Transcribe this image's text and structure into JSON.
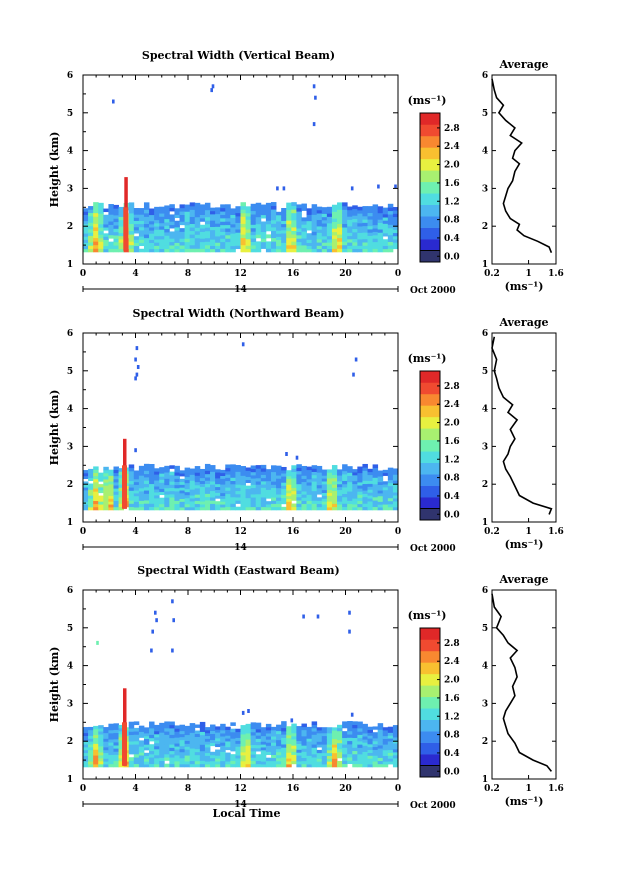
{
  "panels": [
    {
      "title": "Spectral Width (Vertical Beam)",
      "main_chart": {
        "type": "heatmap",
        "xlim": [
          0,
          24
        ],
        "ylim": [
          1,
          6
        ],
        "x_ticks": [
          "0",
          "4",
          "8",
          "12",
          "16",
          "20",
          "0"
        ],
        "y_ticks": [
          "1",
          "2",
          "3",
          "4",
          "5",
          "6"
        ],
        "ylabel": "Height (km)",
        "date_tick": "14",
        "date_label": "Oct 2000",
        "dense_layer_top_km": 2.55,
        "convective_columns_h": [
          1.0,
          3.3,
          12.3,
          15.8,
          19.4
        ],
        "peak_column": {
          "x_h": 3.3,
          "top_km": 3.3
        },
        "sparse_points": [
          [
            2.3,
            5.3
          ],
          [
            9.8,
            5.6
          ],
          [
            9.9,
            5.7
          ],
          [
            17.6,
            5.7
          ],
          [
            17.7,
            5.4
          ],
          [
            17.6,
            4.7
          ],
          [
            14.8,
            3.0
          ],
          [
            15.3,
            3.0
          ],
          [
            20.5,
            3.0
          ],
          [
            22.5,
            3.05
          ],
          [
            23.8,
            3.05
          ]
        ]
      },
      "colorbar": {
        "unit": "(ms⁻¹)",
        "ticks": [
          "0.0",
          "0.4",
          "0.8",
          "1.2",
          "1.6",
          "2.0",
          "2.4",
          "2.8"
        ]
      },
      "average": {
        "title": "Average",
        "xlim": [
          0.2,
          1.6
        ],
        "x_ticks": [
          "0.2",
          "1",
          "1.6"
        ],
        "y_ticks": [
          "1",
          "2",
          "3",
          "4",
          "5",
          "6"
        ],
        "xlabel": "(ms⁻¹)",
        "profile": [
          [
            1.5,
            1.3
          ],
          [
            1.45,
            1.45
          ],
          [
            1.2,
            1.6
          ],
          [
            0.9,
            1.75
          ],
          [
            0.75,
            1.9
          ],
          [
            0.8,
            2.05
          ],
          [
            0.6,
            2.2
          ],
          [
            0.5,
            2.4
          ],
          [
            0.45,
            2.6
          ],
          [
            0.5,
            2.8
          ],
          [
            0.55,
            3.0
          ],
          [
            0.65,
            3.2
          ],
          [
            0.7,
            3.45
          ],
          [
            0.8,
            3.65
          ],
          [
            0.65,
            3.8
          ],
          [
            0.7,
            4.0
          ],
          [
            0.85,
            4.2
          ],
          [
            0.6,
            4.4
          ],
          [
            0.7,
            4.6
          ],
          [
            0.5,
            4.8
          ],
          [
            0.35,
            5.0
          ],
          [
            0.45,
            5.2
          ],
          [
            0.3,
            5.4
          ],
          [
            0.25,
            5.6
          ],
          [
            0.2,
            5.9
          ]
        ]
      }
    },
    {
      "title": "Spectral Width (Northward Beam)",
      "main_chart": {
        "type": "heatmap",
        "xlim": [
          0,
          24
        ],
        "ylim": [
          1,
          6
        ],
        "x_ticks": [
          "0",
          "4",
          "8",
          "12",
          "16",
          "20",
          "0"
        ],
        "y_ticks": [
          "1",
          "2",
          "3",
          "4",
          "5",
          "6"
        ],
        "ylabel": "Height (km)",
        "date_tick": "14",
        "date_label": "Oct 2000",
        "dense_layer_top_km": 2.45,
        "convective_columns_h": [
          1.0,
          2.0,
          3.2,
          15.8,
          18.9
        ],
        "peak_column": {
          "x_h": 3.2,
          "top_km": 3.2
        },
        "sparse_points": [
          [
            4.1,
            5.6
          ],
          [
            4.0,
            5.3
          ],
          [
            4.2,
            5.1
          ],
          [
            4.1,
            4.9
          ],
          [
            4.0,
            4.8
          ],
          [
            12.2,
            5.7
          ],
          [
            20.8,
            5.3
          ],
          [
            20.6,
            4.9
          ],
          [
            4.0,
            2.9
          ],
          [
            15.5,
            2.8
          ],
          [
            16.3,
            2.7
          ]
        ]
      },
      "colorbar": {
        "unit": "(ms⁻¹)",
        "ticks": [
          "0.0",
          "0.4",
          "0.8",
          "1.2",
          "1.6",
          "2.0",
          "2.4",
          "2.8"
        ]
      },
      "average": {
        "title": "Average",
        "xlim": [
          0.2,
          1.6
        ],
        "x_ticks": [
          "0.2",
          "1",
          "1.6"
        ],
        "y_ticks": [
          "1",
          "2",
          "3",
          "4",
          "5",
          "6"
        ],
        "xlabel": "(ms⁻¹)",
        "profile": [
          [
            1.45,
            1.2
          ],
          [
            1.5,
            1.35
          ],
          [
            1.1,
            1.5
          ],
          [
            0.8,
            1.7
          ],
          [
            0.7,
            1.95
          ],
          [
            0.6,
            2.2
          ],
          [
            0.5,
            2.4
          ],
          [
            0.45,
            2.6
          ],
          [
            0.55,
            2.8
          ],
          [
            0.6,
            3.0
          ],
          [
            0.7,
            3.2
          ],
          [
            0.6,
            3.45
          ],
          [
            0.75,
            3.7
          ],
          [
            0.55,
            3.9
          ],
          [
            0.65,
            4.1
          ],
          [
            0.45,
            4.3
          ],
          [
            0.35,
            4.55
          ],
          [
            0.3,
            4.8
          ],
          [
            0.25,
            5.0
          ],
          [
            0.3,
            5.3
          ],
          [
            0.2,
            5.6
          ],
          [
            0.25,
            5.9
          ]
        ]
      }
    },
    {
      "title": "Spectral Width (Eastward Beam)",
      "main_chart": {
        "type": "heatmap",
        "xlim": [
          0,
          24
        ],
        "ylim": [
          1,
          6
        ],
        "x_ticks": [
          "0",
          "4",
          "8",
          "12",
          "16",
          "20",
          "0"
        ],
        "y_ticks": [
          "1",
          "2",
          "3",
          "4",
          "5",
          "6"
        ],
        "ylabel": "Height (km)",
        "date_tick": "14",
        "date_label": "Oct 2000",
        "xlabel": "Local Time",
        "dense_layer_top_km": 2.45,
        "convective_columns_h": [
          1.0,
          3.2,
          12.4,
          15.8,
          19.2
        ],
        "peak_column": {
          "x_h": 3.2,
          "top_km": 3.4
        },
        "sparse_points": [
          [
            5.5,
            5.4
          ],
          [
            5.6,
            5.2
          ],
          [
            5.3,
            4.9
          ],
          [
            5.2,
            4.4
          ],
          [
            6.8,
            5.7
          ],
          [
            6.9,
            5.2
          ],
          [
            6.8,
            4.4
          ],
          [
            16.8,
            5.3
          ],
          [
            17.9,
            5.3
          ],
          [
            20.3,
            5.4
          ],
          [
            20.3,
            4.9
          ],
          [
            12.2,
            2.75
          ],
          [
            12.6,
            2.8
          ],
          [
            15.9,
            2.55
          ],
          [
            20.5,
            2.7
          ],
          [
            1.1,
            4.6
          ]
        ]
      },
      "colorbar": {
        "unit": "(ms⁻¹)",
        "ticks": [
          "0.0",
          "0.4",
          "0.8",
          "1.2",
          "1.6",
          "2.0",
          "2.4",
          "2.8"
        ]
      },
      "average": {
        "title": "Average",
        "xlim": [
          0.2,
          1.6
        ],
        "x_ticks": [
          "0.2",
          "1",
          "1.6"
        ],
        "y_ticks": [
          "1",
          "2",
          "3",
          "4",
          "5",
          "6"
        ],
        "xlabel": "(ms⁻¹)",
        "profile": [
          [
            1.5,
            1.2
          ],
          [
            1.4,
            1.35
          ],
          [
            1.1,
            1.5
          ],
          [
            0.8,
            1.7
          ],
          [
            0.7,
            1.95
          ],
          [
            0.55,
            2.2
          ],
          [
            0.5,
            2.4
          ],
          [
            0.45,
            2.6
          ],
          [
            0.5,
            2.8
          ],
          [
            0.6,
            3.0
          ],
          [
            0.7,
            3.2
          ],
          [
            0.65,
            3.45
          ],
          [
            0.75,
            3.7
          ],
          [
            0.7,
            3.95
          ],
          [
            0.6,
            4.2
          ],
          [
            0.75,
            4.4
          ],
          [
            0.55,
            4.6
          ],
          [
            0.45,
            4.8
          ],
          [
            0.3,
            5.0
          ],
          [
            0.4,
            5.3
          ],
          [
            0.25,
            5.55
          ],
          [
            0.2,
            5.9
          ]
        ]
      }
    }
  ],
  "colors": {
    "scale": [
      "#30346e",
      "#2a2ad0",
      "#2f5fe8",
      "#3c8cf0",
      "#4cb6f0",
      "#50dde0",
      "#6ef0b0",
      "#a8f070",
      "#e8f040",
      "#f8c030",
      "#f88830",
      "#f04a30",
      "#e02828"
    ],
    "frame": "#000000"
  }
}
